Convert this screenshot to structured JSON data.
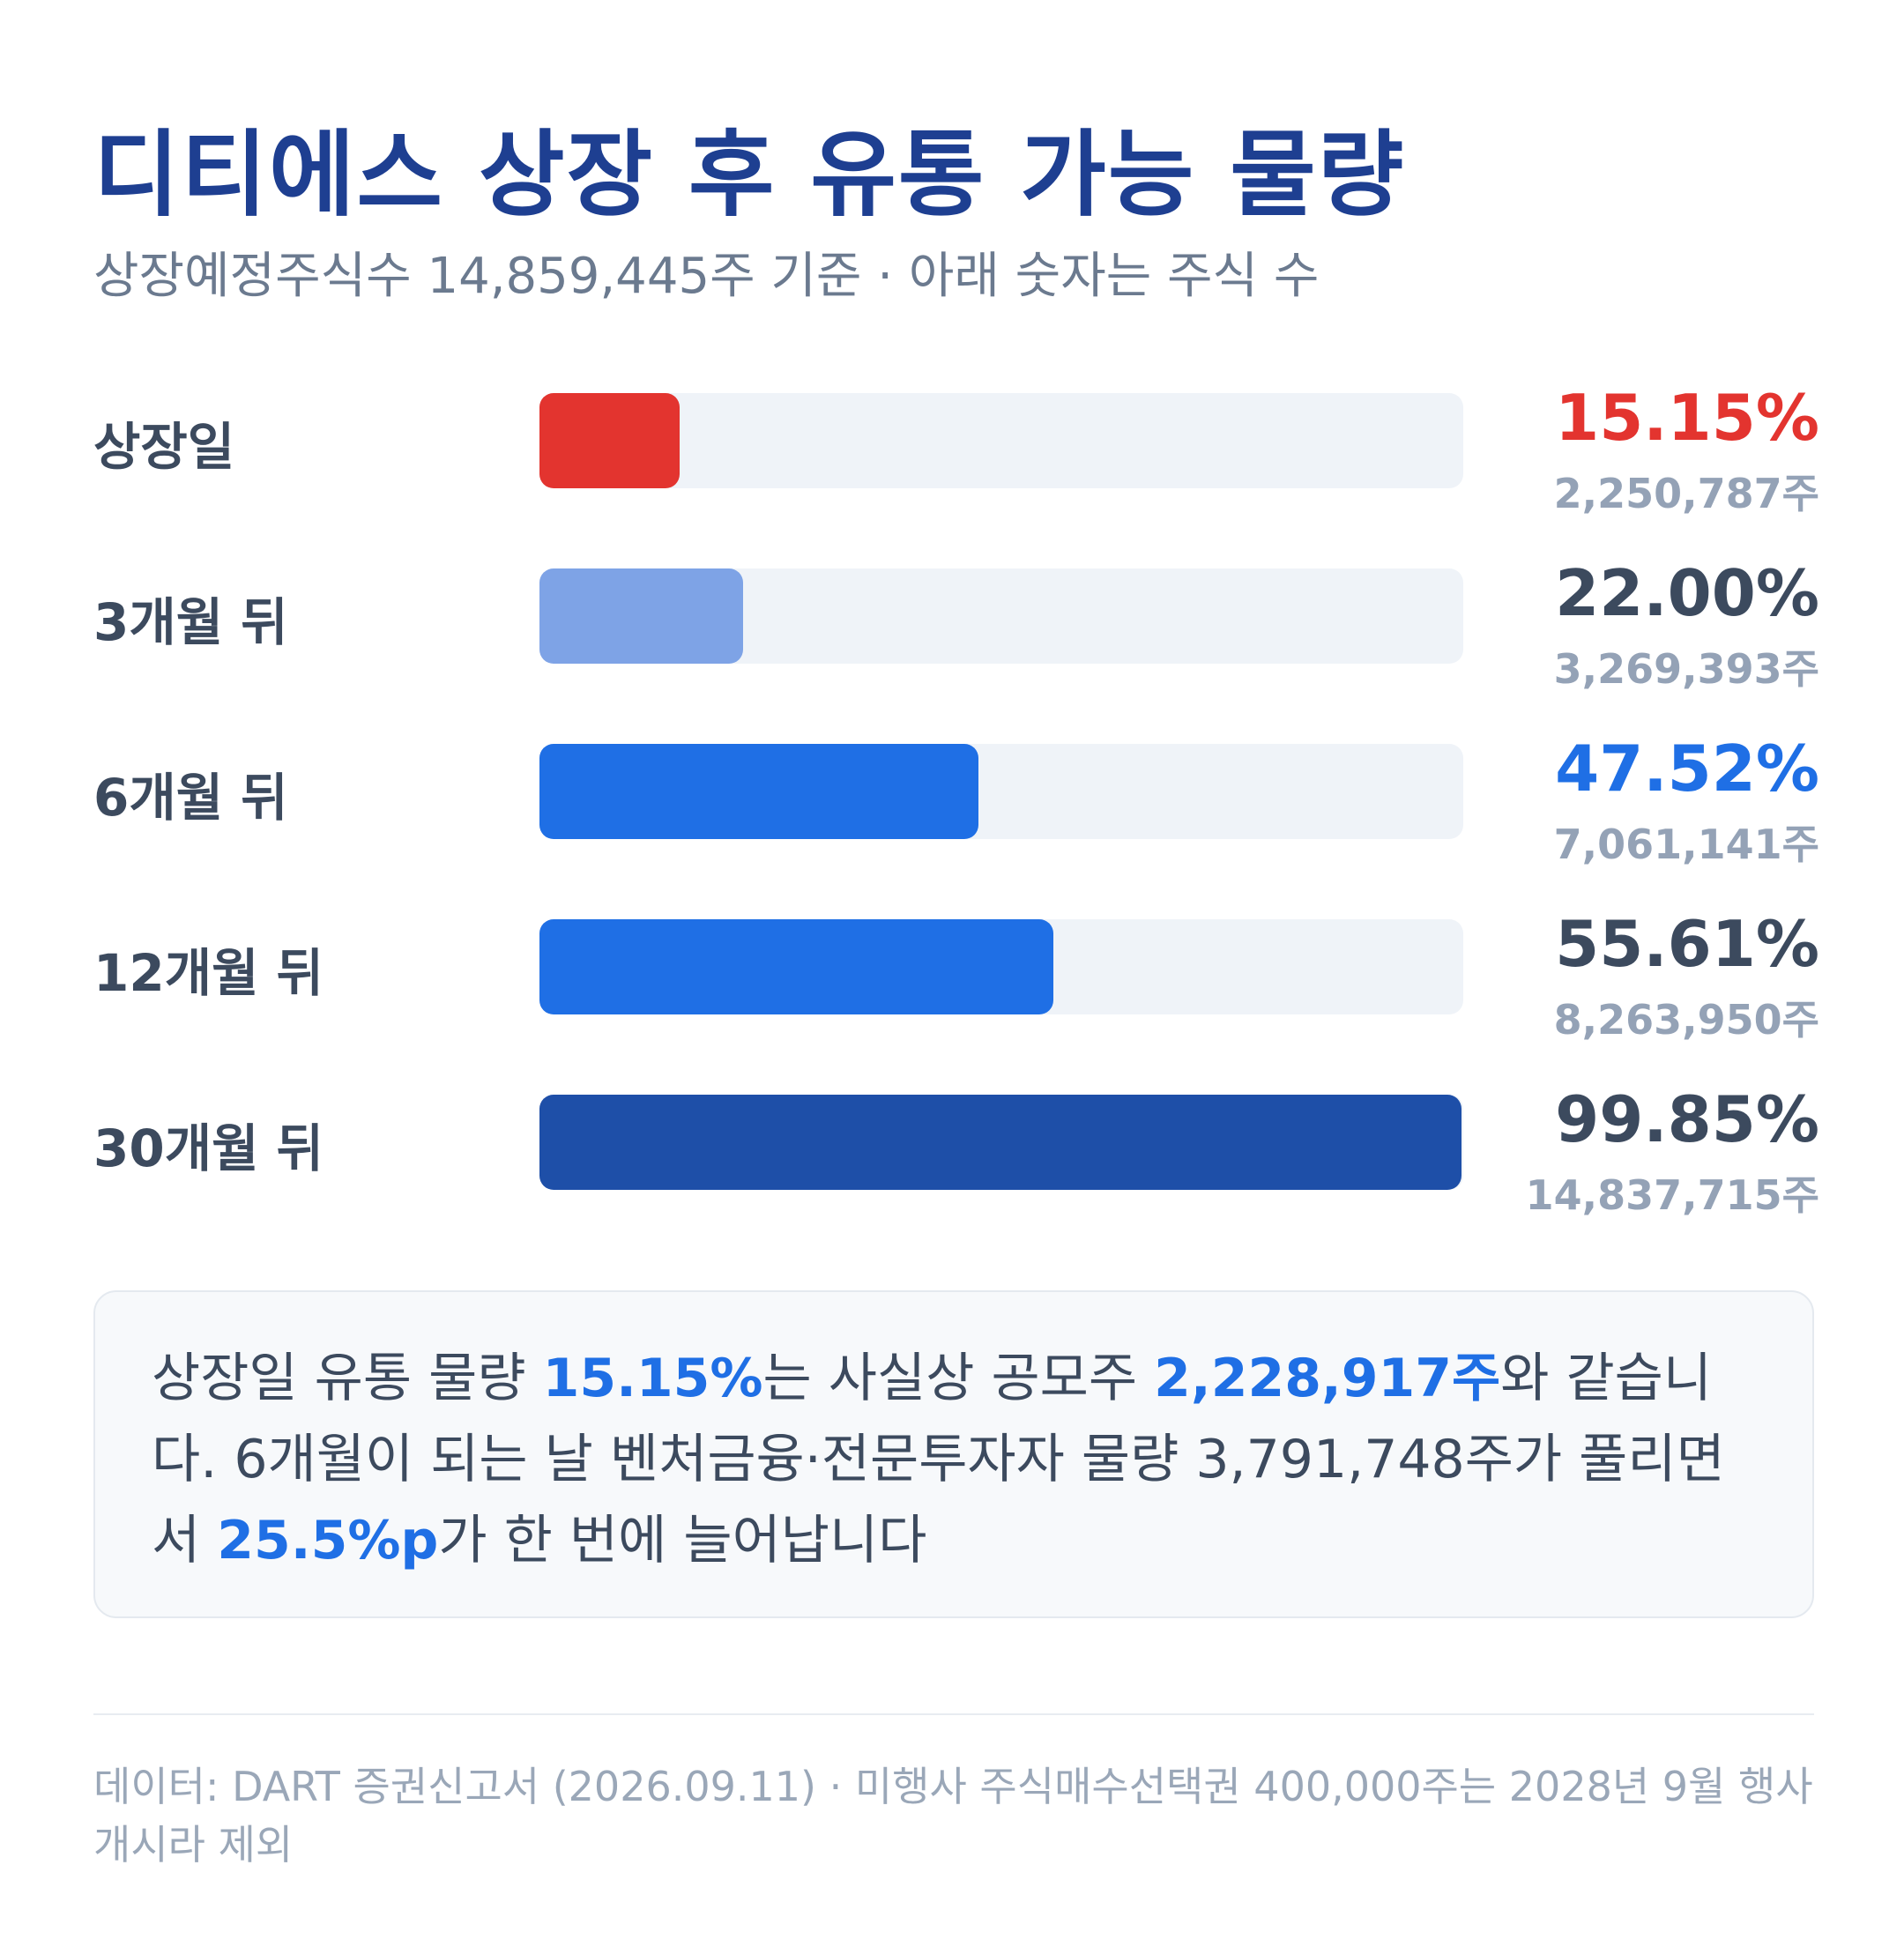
{
  "header": {
    "title": "디티에스 상장 후 유통 가능 물량",
    "subtitle": "상장예정주식수 14,859,445주 기준 · 아래 숫자는 주식 수"
  },
  "chart_data": {
    "type": "bar",
    "orientation": "horizontal",
    "categories": [
      "상장일",
      "3개월 뒤",
      "6개월 뒤",
      "12개월 뒤",
      "30개월 뒤"
    ],
    "values": [
      15.15,
      22.0,
      47.52,
      55.61,
      99.85
    ],
    "value_labels": [
      "15.15%",
      "22.00%",
      "47.52%",
      "55.61%",
      "99.85%"
    ],
    "share_labels": [
      "2,250,787주",
      "3,269,393주",
      "7,061,141주",
      "8,263,950주",
      "14,837,715주"
    ],
    "bar_colors": [
      "#e3342f",
      "#7ea3e6",
      "#1f6fe5",
      "#1f6fe5",
      "#1e4fa8"
    ],
    "value_label_colors": [
      "#e3342f",
      "#3c4a5e",
      "#1f6fe5",
      "#3c4a5e",
      "#3c4a5e"
    ],
    "xlim": [
      0,
      100
    ],
    "grid": false,
    "legend": "none"
  },
  "note": {
    "t1": "상장일 유통 물량 ",
    "h1": "15.15%",
    "t2": "는 사실상 공모주 ",
    "h2": "2,228,917주",
    "t3": "와 같습니다. 6개월이 되는 날 벤처금융·전문투자자 물량 3,791,748주가 풀리면서 ",
    "h3": "25.5%p",
    "t4": "가 한 번에 늘어납니다"
  },
  "source": "데이터: DART 증권신고서 (2026.09.11) · 미행사 주식매수선택권 400,000주는 2028년 9월 행사 개시라 제외"
}
